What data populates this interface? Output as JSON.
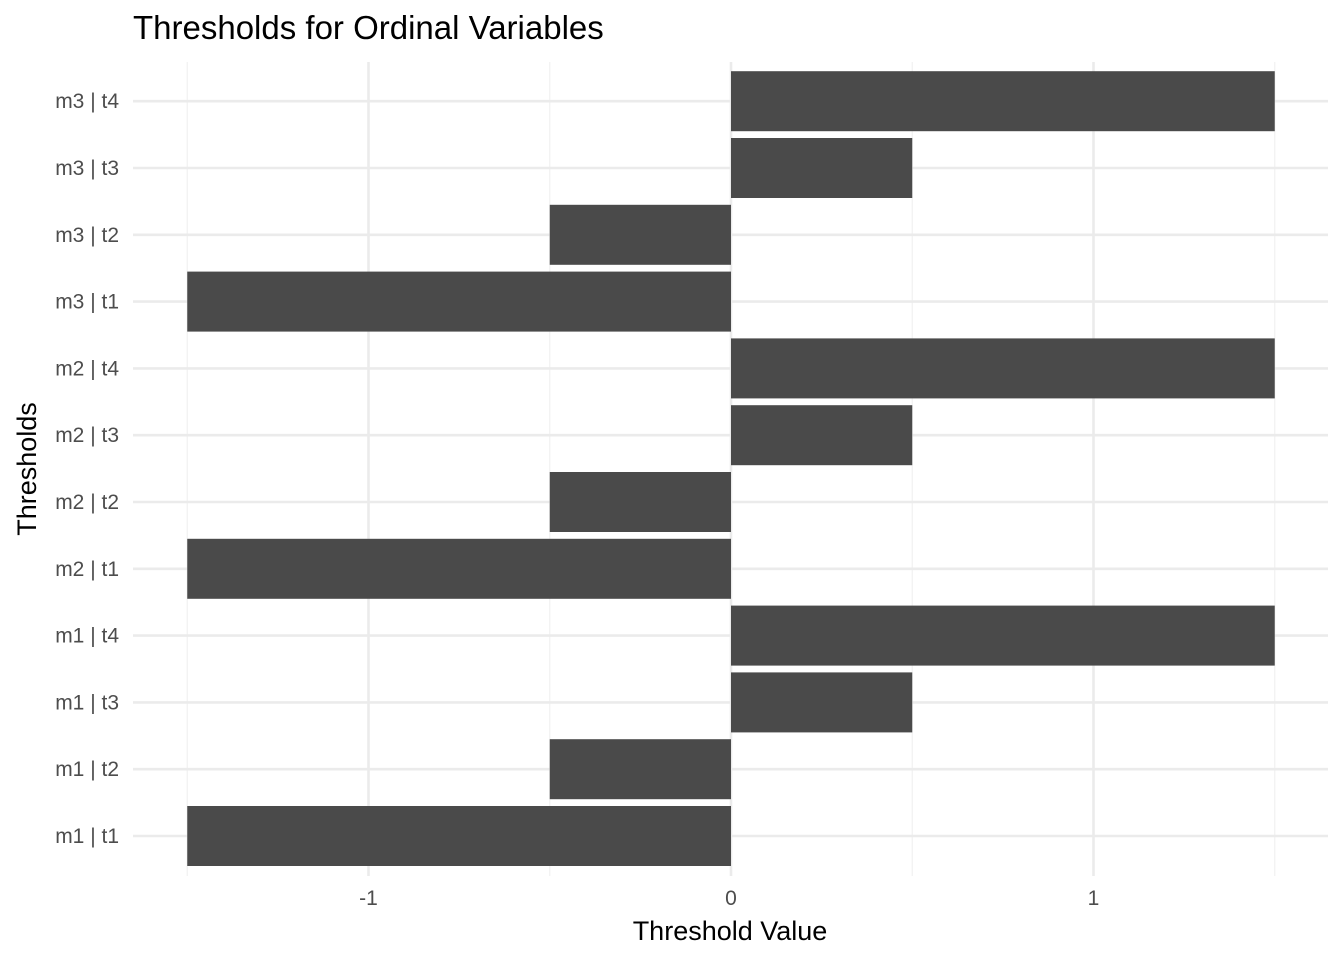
{
  "chart_data": {
    "type": "bar",
    "orientation": "horizontal",
    "title": "Thresholds for Ordinal Variables",
    "xlabel": "Threshold Value",
    "ylabel": "Thresholds",
    "categories": [
      "m1 | t1",
      "m1 | t2",
      "m1 | t3",
      "m1 | t4",
      "m2 | t1",
      "m2 | t2",
      "m2 | t3",
      "m2 | t4",
      "m3 | t1",
      "m3 | t2",
      "m3 | t3",
      "m3 | t4"
    ],
    "values": [
      -1.5,
      -0.5,
      0.5,
      1.5,
      -1.5,
      -0.5,
      0.5,
      1.5,
      -1.5,
      -0.5,
      0.5,
      1.5
    ],
    "xlim": [
      -1.65,
      1.65
    ],
    "x_ticks": [
      -1,
      0,
      1
    ],
    "x_tick_labels": [
      "-1",
      "0",
      "1"
    ],
    "x_minor_ticks": [
      -1.5,
      -0.5,
      0.5,
      1.5
    ],
    "grid": true,
    "legend": "none",
    "bar_color": "#4a4a4a",
    "background": "#ffffff"
  }
}
